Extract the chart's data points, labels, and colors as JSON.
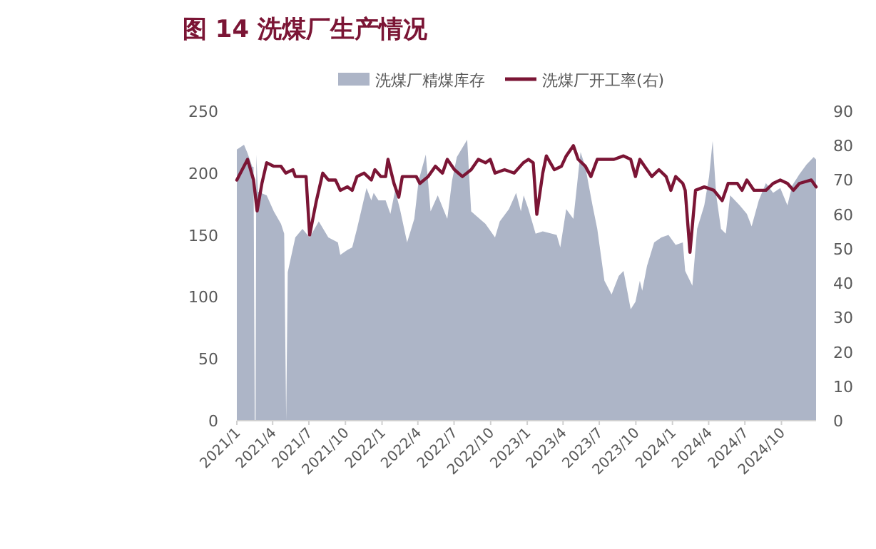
{
  "chart_data": {
    "type": "area",
    "title": "图 14 洗煤厂生产情况",
    "legend": "top",
    "xlim": [
      "2021-01-01",
      "2024-12-27"
    ],
    "xticks": [
      {
        "value": "2021-01-01",
        "label": "2021/1"
      },
      {
        "value": "2021-04-01",
        "label": "2021/4"
      },
      {
        "value": "2021-07-01",
        "label": "2021/7"
      },
      {
        "value": "2021-10-01",
        "label": "2021/10"
      },
      {
        "value": "2022-01-01",
        "label": "2022/1"
      },
      {
        "value": "2022-04-01",
        "label": "2022/4"
      },
      {
        "value": "2022-07-01",
        "label": "2022/7"
      },
      {
        "value": "2022-10-01",
        "label": "2022/10"
      },
      {
        "value": "2023-01-01",
        "label": "2023/1"
      },
      {
        "value": "2023-04-01",
        "label": "2023/4"
      },
      {
        "value": "2023-07-01",
        "label": "2023/7"
      },
      {
        "value": "2023-10-01",
        "label": "2023/10"
      },
      {
        "value": "2024-01-01",
        "label": "2024/1"
      },
      {
        "value": "2024-04-01",
        "label": "2024/4"
      },
      {
        "value": "2024-07-01",
        "label": "2024/7"
      },
      {
        "value": "2024-10-01",
        "label": "2024/10"
      }
    ],
    "ylim": [
      0,
      250
    ],
    "yticks": [
      0,
      50,
      100,
      150,
      200,
      250
    ],
    "y2lim": [
      0,
      90
    ],
    "y2ticks": [
      0,
      10,
      20,
      30,
      40,
      50,
      60,
      70,
      80,
      90
    ],
    "series": [
      {
        "name": "洗煤厂精煤库存",
        "color": "#adb5c7",
        "x": [
          "2021-01-01",
          "2021-01-19",
          "2021-01-28",
          "2021-02-09",
          "2021-02-12",
          "2021-02-15",
          "2021-02-17",
          "2021-02-19",
          "2021-02-23",
          "2021-03-17",
          "2021-04-04",
          "2021-04-22",
          "2021-04-30",
          "2021-05-05",
          "2021-05-09",
          "2021-05-13",
          "2021-05-28",
          "2021-06-15",
          "2021-07-03",
          "2021-07-26",
          "2021-08-19",
          "2021-09-12",
          "2021-09-18",
          "2021-10-06",
          "2021-10-18",
          "2021-10-30",
          "2021-11-23",
          "2021-12-05",
          "2021-12-11",
          "2021-12-23",
          "2022-01-10",
          "2022-01-22",
          "2022-02-03",
          "2022-02-15",
          "2022-03-05",
          "2022-03-23",
          "2022-04-03",
          "2022-04-21",
          "2022-05-03",
          "2022-05-21",
          "2022-06-14",
          "2022-06-26",
          "2022-07-08",
          "2022-08-03",
          "2022-08-13",
          "2022-09-18",
          "2022-10-12",
          "2022-10-24",
          "2022-11-16",
          "2022-12-04",
          "2022-12-16",
          "2022-12-23",
          "2023-01-04",
          "2023-01-22",
          "2023-02-09",
          "2023-03-16",
          "2023-03-25",
          "2023-04-09",
          "2023-04-27",
          "2023-05-15",
          "2023-05-27",
          "2023-06-14",
          "2023-06-26",
          "2023-07-14",
          "2023-08-01",
          "2023-08-19",
          "2023-08-31",
          "2023-09-18",
          "2023-09-30",
          "2023-10-11",
          "2023-10-17",
          "2023-10-29",
          "2023-11-16",
          "2023-12-04",
          "2023-12-22",
          "2024-01-09",
          "2024-01-27",
          "2024-02-02",
          "2024-02-20",
          "2024-03-03",
          "2024-03-21",
          "2024-04-02",
          "2024-04-11",
          "2024-04-20",
          "2024-05-02",
          "2024-05-14",
          "2024-05-25",
          "2024-06-18",
          "2024-07-06",
          "2024-07-18",
          "2024-08-05",
          "2024-08-23",
          "2024-09-10",
          "2024-09-28",
          "2024-10-16",
          "2024-10-28",
          "2024-11-15",
          "2024-12-03",
          "2024-12-21",
          "2024-12-27"
        ],
        "values": [
          219,
          223,
          216,
          205,
          205,
          0,
          0,
          215,
          185,
          182,
          169,
          159,
          151,
          0,
          120,
          126,
          148,
          155,
          148,
          161,
          148,
          144,
          134,
          138,
          140,
          155,
          188,
          178,
          184,
          178,
          178,
          167,
          186,
          171,
          144,
          163,
          194,
          215,
          169,
          182,
          163,
          194,
          213,
          227,
          169,
          159,
          148,
          161,
          171,
          184,
          169,
          182,
          171,
          151,
          153,
          150,
          140,
          171,
          163,
          217,
          205,
          174,
          155,
          113,
          102,
          117,
          121,
          90,
          96,
          113,
          105,
          125,
          144,
          148,
          150,
          142,
          144,
          121,
          109,
          155,
          174,
          197,
          226,
          182,
          155,
          151,
          182,
          174,
          167,
          157,
          178,
          192,
          184,
          188,
          174,
          190,
          199,
          207,
          213,
          211
        ]
      },
      {
        "name": "洗煤厂开工率(右)",
        "type": "line",
        "axis": "y2",
        "color": "#7b1535",
        "x": [
          "2021-01-01",
          "2021-01-10",
          "2021-01-28",
          "2021-02-12",
          "2021-02-21",
          "2021-03-05",
          "2021-03-17",
          "2021-04-04",
          "2021-04-22",
          "2021-05-04",
          "2021-05-22",
          "2021-05-28",
          "2021-06-09",
          "2021-06-24",
          "2021-07-03",
          "2021-07-20",
          "2021-08-05",
          "2021-08-19",
          "2021-09-06",
          "2021-09-18",
          "2021-10-06",
          "2021-10-18",
          "2021-10-30",
          "2021-11-17",
          "2021-12-05",
          "2021-12-14",
          "2021-12-29",
          "2022-01-10",
          "2022-01-16",
          "2022-01-31",
          "2022-02-12",
          "2022-02-21",
          "2022-03-11",
          "2022-03-28",
          "2022-04-06",
          "2022-04-27",
          "2022-05-15",
          "2022-06-02",
          "2022-06-14",
          "2022-07-02",
          "2022-07-22",
          "2022-08-13",
          "2022-08-31",
          "2022-09-18",
          "2022-09-30",
          "2022-10-12",
          "2022-11-05",
          "2022-11-29",
          "2022-12-22",
          "2023-01-04",
          "2023-01-16",
          "2023-01-25",
          "2023-02-09",
          "2023-02-18",
          "2023-03-10",
          "2023-03-28",
          "2023-04-09",
          "2023-04-27",
          "2023-05-09",
          "2023-05-27",
          "2023-06-10",
          "2023-06-26",
          "2023-07-14",
          "2023-08-07",
          "2023-08-31",
          "2023-09-18",
          "2023-09-30",
          "2023-10-11",
          "2023-10-23",
          "2023-11-10",
          "2023-11-28",
          "2023-12-16",
          "2023-12-28",
          "2024-01-09",
          "2024-01-27",
          "2024-02-02",
          "2024-02-14",
          "2024-02-28",
          "2024-03-21",
          "2024-04-14",
          "2024-05-05",
          "2024-05-20",
          "2024-06-12",
          "2024-06-24",
          "2024-07-06",
          "2024-07-24",
          "2024-08-23",
          "2024-09-10",
          "2024-09-28",
          "2024-10-16",
          "2024-10-31",
          "2024-11-15",
          "2024-12-15",
          "2024-12-27"
        ],
        "values": [
          70,
          72,
          76,
          70,
          61,
          69,
          75,
          74,
          74,
          72,
          73,
          71,
          71,
          71,
          54,
          64,
          72,
          70,
          70,
          67,
          68,
          67,
          71,
          72,
          70,
          73,
          71,
          71,
          76,
          69,
          65,
          71,
          71,
          71,
          69,
          71,
          74,
          72,
          76,
          73,
          71,
          73,
          76,
          75,
          76,
          72,
          73,
          72,
          75,
          76,
          75,
          60,
          72,
          77,
          73,
          74,
          77,
          80,
          76,
          74,
          71,
          76,
          76,
          76,
          77,
          76,
          71,
          76,
          74,
          71,
          73,
          71,
          67,
          71,
          69,
          67,
          49,
          67,
          68,
          67,
          64,
          69,
          69,
          67,
          70,
          67,
          67,
          69,
          70,
          69,
          67,
          69,
          70,
          68
        ]
      }
    ]
  }
}
